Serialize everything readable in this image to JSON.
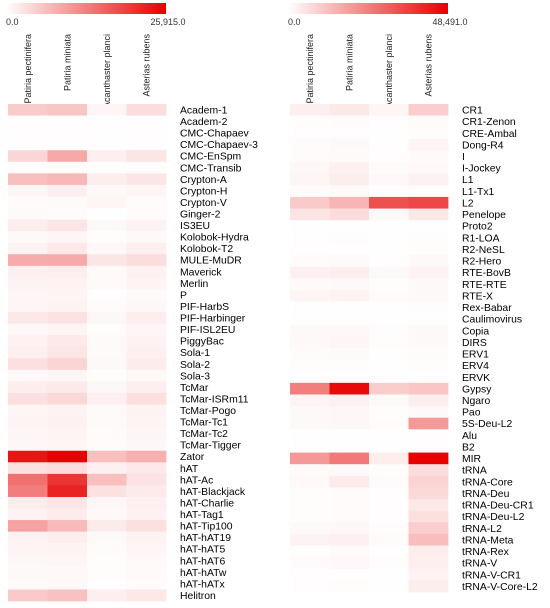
{
  "chart_data": [
    {
      "type": "heatmap",
      "colorbar": {
        "min_label": "0.0",
        "max_label": "25,915.0",
        "min": 0,
        "max": 25915,
        "low_color": "#ffffff",
        "high_color": "#e60000"
      },
      "columns": [
        "Patiria pectinifera",
        "Patiria miniata",
        "Acanthaster planci",
        "Asterias rubens"
      ],
      "rows": [
        {
          "label": "Academ-1",
          "values": [
            5300,
            5800,
            900,
            3500
          ]
        },
        {
          "label": "Academ-2",
          "values": [
            250,
            250,
            100,
            250
          ]
        },
        {
          "label": "CMC-Chapaev",
          "values": [
            200,
            200,
            100,
            200
          ]
        },
        {
          "label": "CMC-Chapaev-3",
          "values": [
            200,
            200,
            100,
            200
          ]
        },
        {
          "label": "CMC-EnSpm",
          "values": [
            4200,
            8800,
            1600,
            2600
          ]
        },
        {
          "label": "CMC-Transib",
          "values": [
            300,
            300,
            100,
            300
          ]
        },
        {
          "label": "Crypton-A",
          "values": [
            6600,
            7200,
            1700,
            2600
          ]
        },
        {
          "label": "Crypton-H",
          "values": [
            1000,
            1600,
            600,
            1000
          ]
        },
        {
          "label": "Crypton-V",
          "values": [
            400,
            500,
            1000,
            400
          ]
        },
        {
          "label": "Ginger-2",
          "values": [
            500,
            400,
            100,
            400
          ]
        },
        {
          "label": "IS3EU",
          "values": [
            1800,
            2600,
            600,
            1300
          ]
        },
        {
          "label": "Kolobok-Hydra",
          "values": [
            600,
            900,
            300,
            600
          ]
        },
        {
          "label": "Kolobok-T2",
          "values": [
            1200,
            2400,
            700,
            1600
          ]
        },
        {
          "label": "MULE-MuDR",
          "values": [
            8400,
            8600,
            2600,
            3500
          ]
        },
        {
          "label": "Maverick",
          "values": [
            1500,
            1700,
            500,
            1400
          ]
        },
        {
          "label": "Merlin",
          "values": [
            1200,
            1300,
            500,
            1100
          ]
        },
        {
          "label": "P",
          "values": [
            900,
            1100,
            200,
            600
          ]
        },
        {
          "label": "PIF-HarbS",
          "values": [
            900,
            1200,
            400,
            800
          ]
        },
        {
          "label": "PIF-Harbinger",
          "values": [
            2300,
            2800,
            800,
            1800
          ]
        },
        {
          "label": "PIF-ISL2EU",
          "values": [
            800,
            1100,
            300,
            900
          ]
        },
        {
          "label": "PiggyBac",
          "values": [
            1400,
            2200,
            500,
            1200
          ]
        },
        {
          "label": "Sola-1",
          "values": [
            1600,
            2600,
            500,
            1500
          ]
        },
        {
          "label": "Sola-2",
          "values": [
            3100,
            4400,
            600,
            1900
          ]
        },
        {
          "label": "Sola-3",
          "values": [
            600,
            900,
            300,
            700
          ]
        },
        {
          "label": "TcMar",
          "values": [
            1800,
            2200,
            800,
            1600
          ]
        },
        {
          "label": "TcMar-ISRm11",
          "values": [
            3100,
            4000,
            1500,
            3300
          ]
        },
        {
          "label": "TcMar-Pogo",
          "values": [
            1000,
            1300,
            500,
            1200
          ]
        },
        {
          "label": "TcMar-Tc1",
          "values": [
            1100,
            1400,
            500,
            1100
          ]
        },
        {
          "label": "TcMar-Tc2",
          "values": [
            900,
            1100,
            400,
            900
          ]
        },
        {
          "label": "TcMar-Tigger",
          "values": [
            800,
            1000,
            400,
            800
          ]
        },
        {
          "label": "Zator",
          "values": [
            23800,
            25915,
            6600,
            8000
          ]
        },
        {
          "label": "hAT",
          "values": [
            3000,
            3600,
            1500,
            2200
          ]
        },
        {
          "label": "hAT-Ac",
          "values": [
            14500,
            20500,
            6600,
            2900
          ]
        },
        {
          "label": "hAT-Blackjack",
          "values": [
            13200,
            22400,
            3000,
            2000
          ]
        },
        {
          "label": "hAT-Charlie",
          "values": [
            1900,
            2500,
            800,
            1500
          ]
        },
        {
          "label": "hAT-Tag1",
          "values": [
            1300,
            1900,
            700,
            1400
          ]
        },
        {
          "label": "hAT-Tip100",
          "values": [
            9500,
            7000,
            2100,
            3300
          ]
        },
        {
          "label": "hAT-hAT19",
          "values": [
            1400,
            1700,
            600,
            1200
          ]
        },
        {
          "label": "hAT-hAT5",
          "values": [
            1100,
            1200,
            400,
            900
          ]
        },
        {
          "label": "hAT-hAT6",
          "values": [
            800,
            1000,
            300,
            700
          ]
        },
        {
          "label": "hAT-hATw",
          "values": [
            600,
            700,
            300,
            500
          ]
        },
        {
          "label": "hAT-hATx",
          "values": [
            500,
            600,
            200,
            400
          ]
        },
        {
          "label": "Helitron",
          "values": [
            5400,
            6200,
            1600,
            2400
          ]
        }
      ]
    },
    {
      "type": "heatmap",
      "colorbar": {
        "min_label": "0.0",
        "max_label": "48,491.0",
        "min": 0,
        "max": 48491,
        "low_color": "#ffffff",
        "high_color": "#e60000"
      },
      "columns": [
        "Patiria pectinifera",
        "Patiria miniata",
        "Acanthaster planci",
        "Asterias rubens"
      ],
      "rows": [
        {
          "label": "CR1",
          "values": [
            3100,
            4400,
            1900,
            9300
          ]
        },
        {
          "label": "CR1-Zenon",
          "values": [
            600,
            800,
            300,
            700
          ]
        },
        {
          "label": "CRE-Ambal",
          "values": [
            300,
            300,
            200,
            500
          ]
        },
        {
          "label": "Dong-R4",
          "values": [
            800,
            1100,
            400,
            2100
          ]
        },
        {
          "label": "I",
          "values": [
            700,
            900,
            300,
            900
          ]
        },
        {
          "label": "I-Jockey",
          "values": [
            1500,
            2900,
            700,
            1300
          ]
        },
        {
          "label": "L1",
          "values": [
            1900,
            3300,
            1300,
            2600
          ]
        },
        {
          "label": "L1-Tx1",
          "values": [
            800,
            900,
            400,
            600
          ]
        },
        {
          "label": "L2",
          "values": [
            10200,
            14000,
            33500,
            35000
          ]
        },
        {
          "label": "Penelope",
          "values": [
            5200,
            6800,
            1100,
            4400
          ]
        },
        {
          "label": "Proto2",
          "values": [
            200,
            200,
            100,
            200
          ]
        },
        {
          "label": "R1-LOA",
          "values": [
            400,
            500,
            300,
            600
          ]
        },
        {
          "label": "R2-NeSL",
          "values": [
            300,
            400,
            200,
            500
          ]
        },
        {
          "label": "R2-Hero",
          "values": [
            700,
            900,
            300,
            1200
          ]
        },
        {
          "label": "RTE-BovB",
          "values": [
            2800,
            3300,
            1100,
            2400
          ]
        },
        {
          "label": "RTE-RTE",
          "values": [
            900,
            1200,
            500,
            1100
          ]
        },
        {
          "label": "RTE-X",
          "values": [
            1900,
            2400,
            800,
            1400
          ]
        },
        {
          "label": "Rex-Babar",
          "values": [
            300,
            400,
            200,
            500
          ]
        },
        {
          "label": "Caulimovirus",
          "values": [
            200,
            200,
            100,
            200
          ]
        },
        {
          "label": "Copia",
          "values": [
            1100,
            1400,
            500,
            1100
          ]
        },
        {
          "label": "DIRS",
          "values": [
            1300,
            1700,
            600,
            1200
          ]
        },
        {
          "label": "ERV1",
          "values": [
            700,
            900,
            300,
            700
          ]
        },
        {
          "label": "ERV4",
          "values": [
            500,
            600,
            200,
            500
          ]
        },
        {
          "label": "ERVK",
          "values": [
            300,
            400,
            200,
            400
          ]
        },
        {
          "label": "Gypsy",
          "values": [
            24500,
            46500,
            9500,
            11000
          ]
        },
        {
          "label": "Ngaro",
          "values": [
            2000,
            2800,
            900,
            3300
          ]
        },
        {
          "label": "Pao",
          "values": [
            1100,
            1500,
            500,
            1400
          ]
        },
        {
          "label": "5S-Deu-L2",
          "values": [
            1200,
            1600,
            800,
            19500
          ]
        },
        {
          "label": "Alu",
          "values": [
            200,
            200,
            100,
            300
          ]
        },
        {
          "label": "B2",
          "values": [
            300,
            300,
            200,
            400
          ]
        },
        {
          "label": "MIR",
          "values": [
            19500,
            25500,
            3500,
            48491
          ]
        },
        {
          "label": "tRNA",
          "values": [
            900,
            1200,
            500,
            6500
          ]
        },
        {
          "label": "tRNA-Core",
          "values": [
            1300,
            4000,
            700,
            8400
          ]
        },
        {
          "label": "tRNA-Deu",
          "values": [
            600,
            800,
            400,
            7300
          ]
        },
        {
          "label": "tRNA-Deu-CR1",
          "values": [
            500,
            700,
            300,
            4400
          ]
        },
        {
          "label": "tRNA-Deu-L2",
          "values": [
            500,
            800,
            300,
            6000
          ]
        },
        {
          "label": "tRNA-L2",
          "values": [
            1100,
            1500,
            600,
            9300
          ]
        },
        {
          "label": "tRNA-Meta",
          "values": [
            2300,
            2900,
            800,
            12500
          ]
        },
        {
          "label": "tRNA-Rex",
          "values": [
            600,
            900,
            300,
            3500
          ]
        },
        {
          "label": "tRNA-V",
          "values": [
            700,
            1400,
            600,
            3000
          ]
        },
        {
          "label": "tRNA-V-CR1",
          "values": [
            300,
            400,
            200,
            2400
          ]
        },
        {
          "label": "tRNA-V-Core-L2",
          "values": [
            400,
            500,
            200,
            3300
          ]
        }
      ]
    }
  ]
}
